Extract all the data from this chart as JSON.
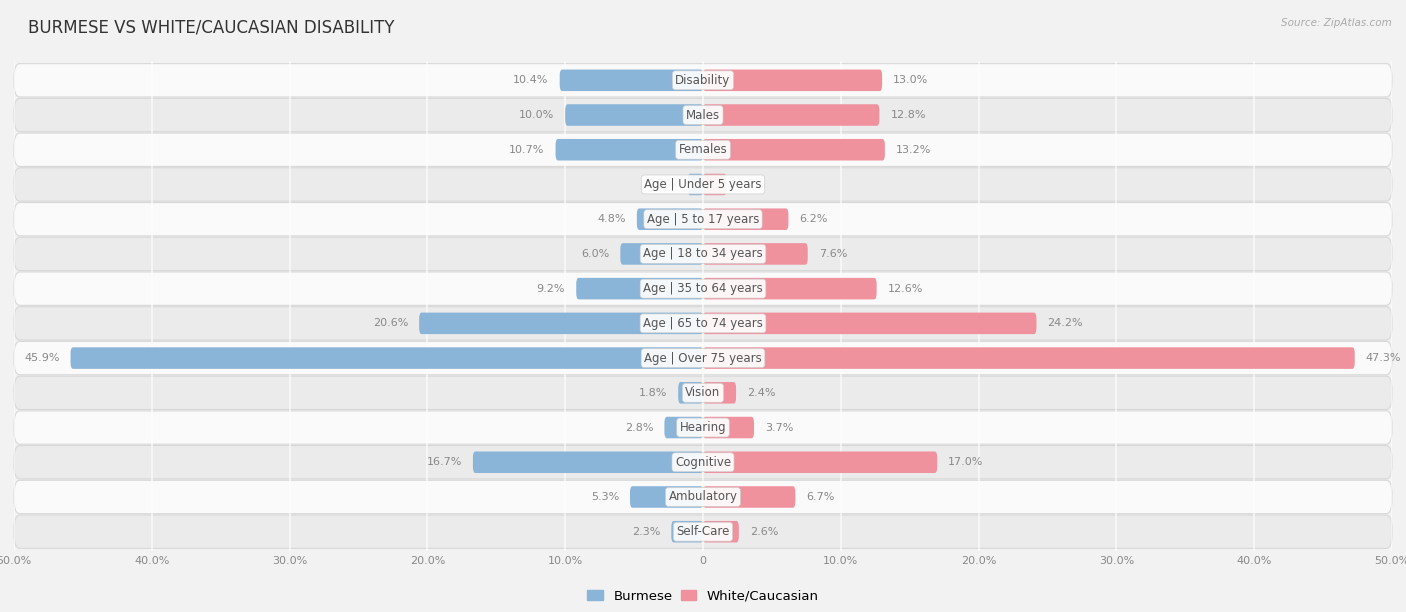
{
  "title": "BURMESE VS WHITE/CAUCASIAN DISABILITY",
  "source": "Source: ZipAtlas.com",
  "categories": [
    "Disability",
    "Males",
    "Females",
    "Age | Under 5 years",
    "Age | 5 to 17 years",
    "Age | 18 to 34 years",
    "Age | 35 to 64 years",
    "Age | 65 to 74 years",
    "Age | Over 75 years",
    "Vision",
    "Hearing",
    "Cognitive",
    "Ambulatory",
    "Self-Care"
  ],
  "burmese_values": [
    10.4,
    10.0,
    10.7,
    1.1,
    4.8,
    6.0,
    9.2,
    20.6,
    45.9,
    1.8,
    2.8,
    16.7,
    5.3,
    2.3
  ],
  "white_values": [
    13.0,
    12.8,
    13.2,
    1.7,
    6.2,
    7.6,
    12.6,
    24.2,
    47.3,
    2.4,
    3.7,
    17.0,
    6.7,
    2.6
  ],
  "burmese_color": "#8ab4d8",
  "white_color": "#f0919e",
  "bar_height": 0.62,
  "xlim": [
    -50,
    50
  ],
  "x_axis_ticks": [
    -50,
    -40,
    -30,
    -20,
    -10,
    0,
    10,
    20,
    30,
    40,
    50
  ],
  "x_axis_labels": [
    "50.0%",
    "40.0%",
    "30.0%",
    "20.0%",
    "10.0%",
    "0",
    "10.0%",
    "20.0%",
    "30.0%",
    "40.0%",
    "50.0%"
  ],
  "background_color": "#f2f2f2",
  "row_bg_colors": [
    "#fafafa",
    "#ebebeb"
  ],
  "row_border_color": "#d8d8d8",
  "title_fontsize": 12,
  "label_fontsize": 8.5,
  "value_fontsize": 8,
  "legend_fontsize": 9.5,
  "title_color": "#333333",
  "source_color": "#aaaaaa",
  "value_color": "#888888",
  "label_color": "#555555"
}
